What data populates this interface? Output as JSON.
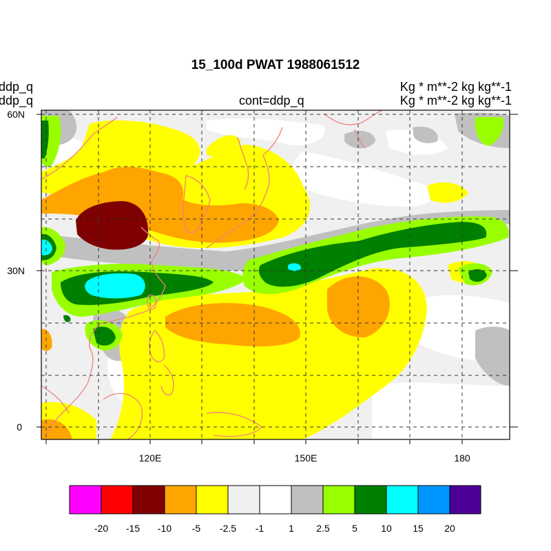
{
  "map": {
    "title": "15_100d PWAT  1988061512",
    "left_labels": [
      "ddp_q",
      "ddp_q"
    ],
    "center_label": "cont=ddp_q",
    "right_labels": [
      "Kg  * m**-2 kg kg**-1",
      "Kg  * m**-2 kg kg**-1"
    ],
    "lon_ticks": [
      "120E",
      "150E",
      "180"
    ],
    "lat_ticks": [
      "60N",
      "30N",
      "0"
    ],
    "extent": {
      "lon_min": 99,
      "lon_max": 187,
      "lat_min": -2,
      "lat_max": 61
    },
    "colors": {
      "c_m20": "#ff00ff",
      "c_m15": "#ff0000",
      "c_m10": "#7f0000",
      "c_m5": "#ffa500",
      "c_m2_5": "#ffff00",
      "c_m1": "#f0f0f0",
      "c_0": "#ffffff",
      "c_1": "#c0c0c0",
      "c_2_5": "#99ff00",
      "c_5": "#008000",
      "c_10": "#00ffff",
      "c_15": "#0096ff",
      "c_20": "#4b0096",
      "coastline": "#f08080"
    }
  },
  "colorbar": {
    "colors": [
      "#ff00ff",
      "#ff0000",
      "#7f0000",
      "#ffa500",
      "#ffff00",
      "#f0f0f0",
      "#ffffff",
      "#c0c0c0",
      "#99ff00",
      "#008000",
      "#00ffff",
      "#0096ff",
      "#4b0096"
    ],
    "labels": [
      "-20",
      "-15",
      "-10",
      "-5",
      "-2.5",
      "-1",
      "1",
      "2.5",
      "5",
      "10",
      "15",
      "20"
    ]
  }
}
